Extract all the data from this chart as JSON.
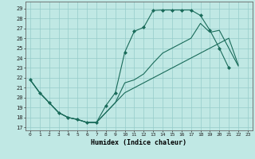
{
  "bg_color": "#c0e8e4",
  "grid_color": "#96ccca",
  "line_color": "#1a6b5a",
  "xlabel": "Humidex (Indice chaleur)",
  "xlim": [
    -0.5,
    23.5
  ],
  "ylim": [
    16.7,
    29.7
  ],
  "xticks": [
    0,
    1,
    2,
    3,
    4,
    5,
    6,
    7,
    8,
    9,
    10,
    11,
    12,
    13,
    14,
    15,
    16,
    17,
    18,
    19,
    20,
    21,
    22,
    23
  ],
  "yticks": [
    17,
    18,
    19,
    20,
    21,
    22,
    23,
    24,
    25,
    26,
    27,
    28,
    29
  ],
  "curve1_x": [
    0,
    1,
    2,
    3,
    4,
    5,
    6,
    7,
    8,
    9,
    10,
    11,
    12,
    13,
    14,
    15,
    16,
    17,
    18,
    19,
    20,
    21,
    22,
    23
  ],
  "curve1_y": [
    21.8,
    20.5,
    19.5,
    18.5,
    18.0,
    17.8,
    17.5,
    17.5,
    19.2,
    20.5,
    24.6,
    26.7,
    27.1,
    28.8,
    28.85,
    28.85,
    28.85,
    28.85,
    28.3,
    26.8,
    25.0,
    23.0,
    null,
    null
  ],
  "curve2_x": [
    0,
    1,
    2,
    3,
    4,
    5,
    6,
    7,
    8,
    9,
    10,
    11,
    12,
    13,
    14,
    15,
    16,
    17,
    18,
    19,
    20,
    21,
    22,
    23
  ],
  "curve2_y": [
    21.8,
    20.5,
    19.5,
    18.5,
    18.0,
    17.8,
    17.5,
    17.5,
    18.5,
    19.5,
    21.5,
    21.8,
    22.4,
    23.5,
    24.5,
    25.0,
    25.5,
    26.0,
    27.5,
    26.6,
    26.8,
    25.0,
    23.2,
    null
  ],
  "curve3_x": [
    0,
    1,
    2,
    3,
    4,
    5,
    6,
    7,
    8,
    9,
    10,
    11,
    12,
    13,
    14,
    15,
    16,
    17,
    18,
    19,
    20,
    21,
    22,
    23
  ],
  "curve3_y": [
    21.8,
    20.5,
    19.5,
    18.5,
    18.0,
    17.8,
    17.5,
    17.5,
    18.5,
    19.5,
    20.5,
    21.0,
    21.5,
    22.0,
    22.5,
    23.0,
    23.5,
    24.0,
    24.5,
    25.0,
    25.5,
    26.0,
    23.3,
    null
  ]
}
